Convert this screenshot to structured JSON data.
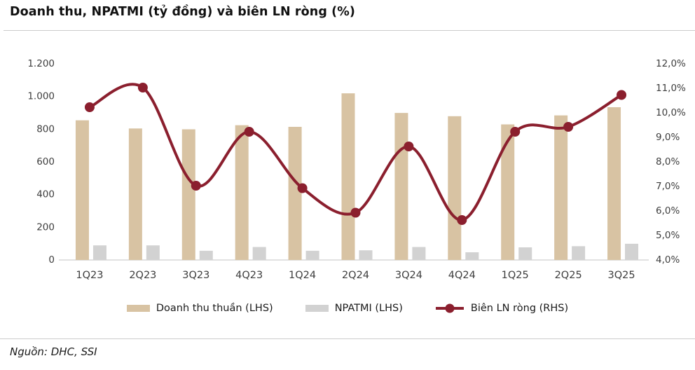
{
  "page": {
    "title": "Doanh thu, NPATMI (tỷ đồng) và biên LN ròng (%)",
    "source": "Nguồn: DHC, SSI"
  },
  "legend": {
    "items": [
      {
        "label": "Doanh thu thuần (LHS)",
        "marker": "bar-swatch",
        "color": "#d8c3a3"
      },
      {
        "label": "NPATMI (LHS)",
        "marker": "bar-swatch",
        "color": "#d2d2d2"
      },
      {
        "label": "Biên LN ròng (RHS)",
        "marker": "line-dot",
        "color": "#8b1f2e"
      }
    ]
  },
  "chart_data": {
    "type": "combo-bar-line",
    "title": "Doanh thu, NPATMI (tỷ đồng) và biên LN ròng (%)",
    "categories": [
      "1Q23",
      "2Q23",
      "3Q23",
      "4Q23",
      "1Q24",
      "2Q24",
      "3Q24",
      "4Q24",
      "1Q25",
      "2Q25",
      "3Q25"
    ],
    "series": [
      {
        "name": "Doanh thu thuần (LHS)",
        "type": "bar",
        "axis": "left",
        "color": "#d8c3a3",
        "values": [
          850,
          800,
          795,
          820,
          810,
          1015,
          895,
          875,
          825,
          880,
          930
        ]
      },
      {
        "name": "NPATMI (LHS)",
        "type": "bar",
        "axis": "left",
        "color": "#d2d2d2",
        "values": [
          85,
          85,
          52,
          75,
          52,
          55,
          75,
          43,
          73,
          80,
          95
        ]
      },
      {
        "name": "Biên LN ròng (RHS)",
        "type": "line",
        "axis": "right",
        "color": "#8b1f2e",
        "values": [
          10.2,
          11.0,
          7.0,
          9.2,
          6.9,
          5.9,
          8.6,
          5.6,
          9.2,
          9.4,
          10.7
        ]
      }
    ],
    "left_axis": {
      "min": 0,
      "max": 1200,
      "step": 200,
      "tick_labels": [
        "0",
        "200",
        "400",
        "600",
        "800",
        "1.000",
        "1.200"
      ]
    },
    "right_axis": {
      "min": 4,
      "max": 12,
      "step": 1,
      "tick_labels": [
        "4,0%",
        "5,0%",
        "6,0%",
        "7,0%",
        "8,0%",
        "9,0%",
        "10,0%",
        "11,0%",
        "12,0%"
      ]
    },
    "grid": false,
    "legend_position": "bottom",
    "axis_text_color": "#3d3d3d",
    "baseline_color": "#d9d9d9"
  }
}
